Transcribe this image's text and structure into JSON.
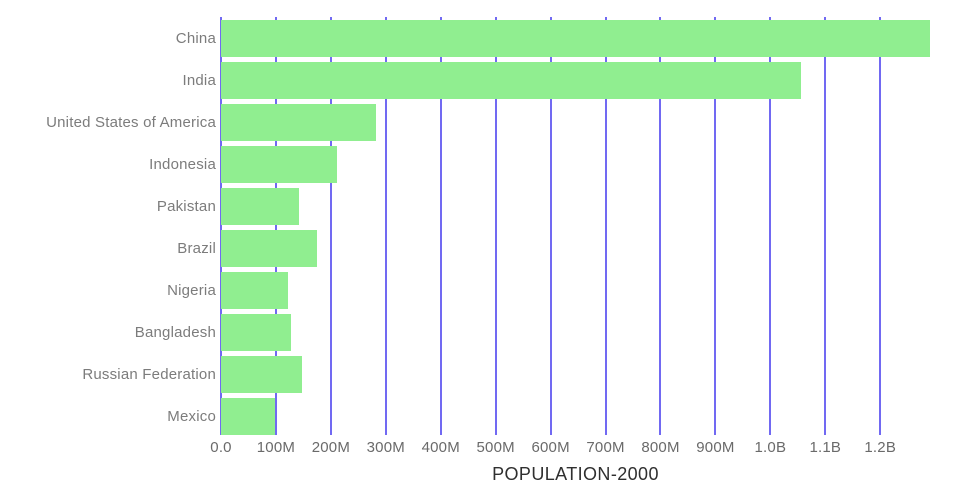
{
  "colors": {
    "background": "#ffffff",
    "bar_fill": "#90ee90",
    "gridline": "#7169f2",
    "category_label": "#7c7c7c",
    "tick_label": "#6a6a6a",
    "title": "#2f2f2f"
  },
  "chart_data": {
    "type": "bar",
    "orientation": "horizontal",
    "title": "POPULATION-2000",
    "unit": "people",
    "legend": "none",
    "categories": [
      "China",
      "India",
      "United States of America",
      "Indonesia",
      "Pakistan",
      "Brazil",
      "Nigeria",
      "Bangladesh",
      "Russian Federation",
      "Mexico"
    ],
    "values_millions": [
      1290.6,
      1056.6,
      281.7,
      211.5,
      142.3,
      174.8,
      122.3,
      127.7,
      146.8,
      98.9
    ],
    "x_axis": {
      "min_millions": 0,
      "max_millions": 1290.6,
      "tick_labels": [
        "0.0",
        "100M",
        "200M",
        "300M",
        "400M",
        "500M",
        "600M",
        "700M",
        "800M",
        "900M",
        "1.0B",
        "1.1B",
        "1.2B"
      ],
      "tick_values_millions": [
        0,
        100,
        200,
        300,
        400,
        500,
        600,
        700,
        800,
        900,
        1000,
        1100,
        1200
      ],
      "gridlines": true
    },
    "y_axis": {
      "labels_side": "left"
    }
  }
}
